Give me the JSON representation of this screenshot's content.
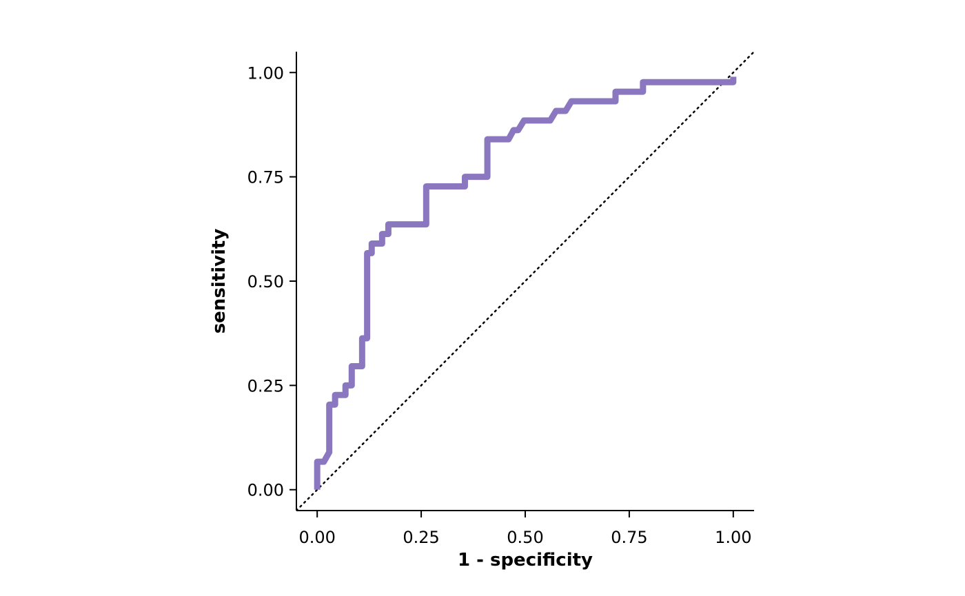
{
  "chart_data": {
    "type": "line",
    "xlabel": "1 - specificity",
    "ylabel": "sensitivity",
    "xlim": [
      -0.05,
      1.05
    ],
    "ylim": [
      -0.05,
      1.05
    ],
    "x_ticks": [
      0,
      0.25,
      0.5,
      0.75,
      1
    ],
    "x_tick_labels": [
      "0.00",
      "0.25",
      "0.50",
      "0.75",
      "1.00"
    ],
    "y_ticks": [
      0,
      0.25,
      0.5,
      0.75,
      1
    ],
    "y_tick_labels": [
      "0.00",
      "0.25",
      "0.50",
      "0.75",
      "1.00"
    ],
    "grid": false,
    "reference_line": {
      "from": [
        0,
        0
      ],
      "to": [
        1,
        1
      ],
      "style": "dotted",
      "color": "#000000"
    },
    "series": [
      {
        "color": "#8b77c0",
        "points": [
          [
            0.0,
            0.0
          ],
          [
            0.0,
            0.067
          ],
          [
            0.016,
            0.067
          ],
          [
            0.029,
            0.09
          ],
          [
            0.029,
            0.204
          ],
          [
            0.043,
            0.204
          ],
          [
            0.043,
            0.227
          ],
          [
            0.068,
            0.227
          ],
          [
            0.068,
            0.25
          ],
          [
            0.083,
            0.25
          ],
          [
            0.083,
            0.296
          ],
          [
            0.108,
            0.296
          ],
          [
            0.108,
            0.363
          ],
          [
            0.12,
            0.363
          ],
          [
            0.12,
            0.567
          ],
          [
            0.131,
            0.567
          ],
          [
            0.131,
            0.59
          ],
          [
            0.156,
            0.59
          ],
          [
            0.156,
            0.613
          ],
          [
            0.171,
            0.613
          ],
          [
            0.171,
            0.636
          ],
          [
            0.262,
            0.636
          ],
          [
            0.262,
            0.727
          ],
          [
            0.355,
            0.727
          ],
          [
            0.355,
            0.75
          ],
          [
            0.409,
            0.75
          ],
          [
            0.409,
            0.84
          ],
          [
            0.46,
            0.84
          ],
          [
            0.472,
            0.862
          ],
          [
            0.483,
            0.862
          ],
          [
            0.497,
            0.885
          ],
          [
            0.56,
            0.885
          ],
          [
            0.574,
            0.908
          ],
          [
            0.597,
            0.908
          ],
          [
            0.611,
            0.931
          ],
          [
            0.717,
            0.931
          ],
          [
            0.717,
            0.954
          ],
          [
            0.783,
            0.954
          ],
          [
            0.783,
            0.977
          ],
          [
            1.0,
            0.977
          ],
          [
            1.0,
            0.99
          ]
        ]
      }
    ]
  }
}
